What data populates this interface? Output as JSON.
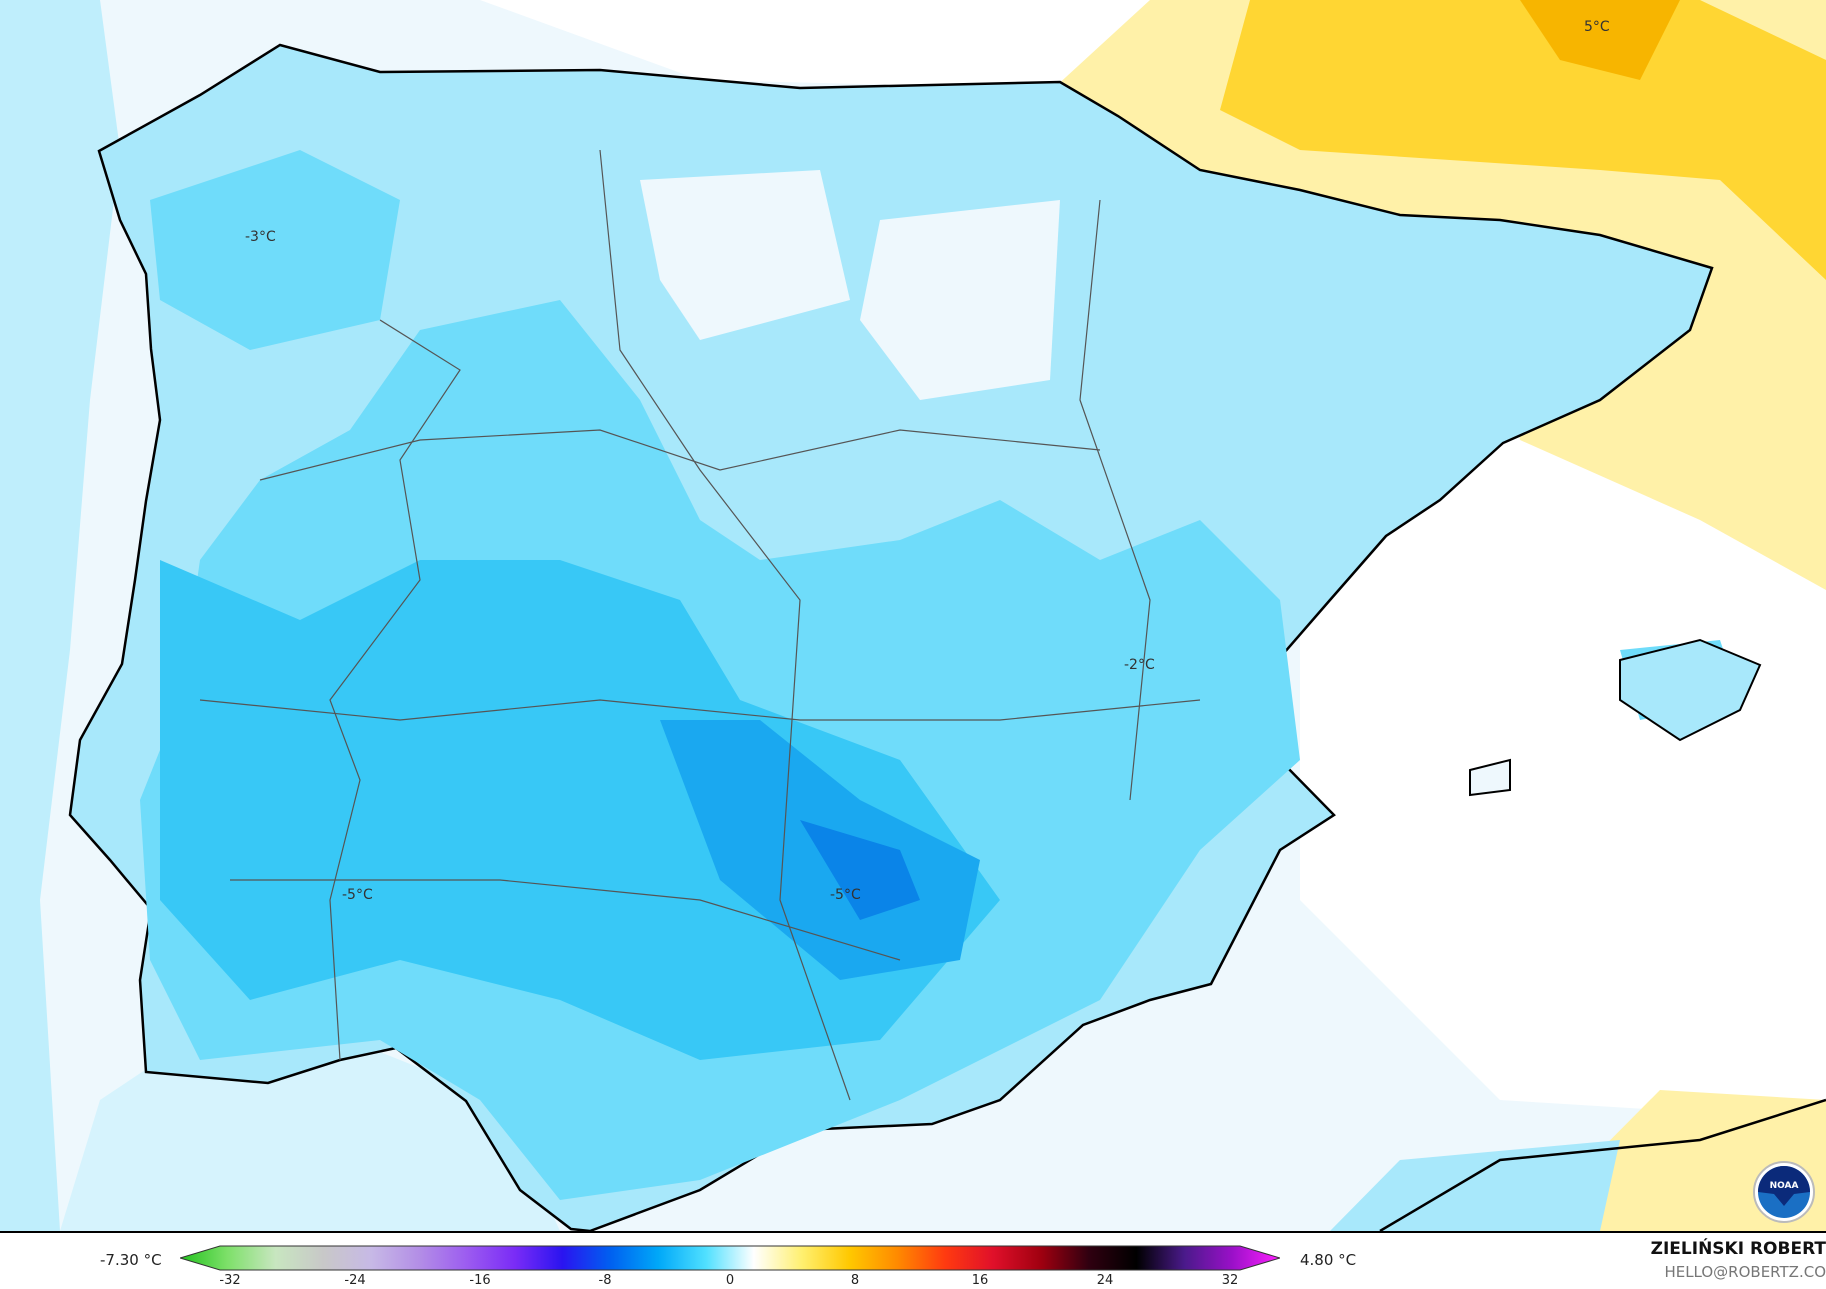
{
  "map": {
    "labels": [
      "-3°C",
      "-2°C",
      "-5°C",
      "-5°C",
      "5°C"
    ],
    "colors": {
      "sea_cold": "#bfeefc",
      "cold1": "#a8e8fb",
      "cold2": "#6fdcfa",
      "cold3": "#38c8f6",
      "cold4": "#1aa8f0",
      "warm1": "#fff1a8",
      "warm2": "#ffd633",
      "warm3": "#f7b500"
    },
    "logo": "NOAA"
  },
  "legend": {
    "min_label": "-7.30 °C",
    "max_label": "4.80 °C",
    "ticks": [
      "-32",
      "-24",
      "-16",
      "-8",
      "0",
      "8",
      "16",
      "24",
      "32"
    ],
    "gradient": [
      "#22c21e",
      "#7ee06a",
      "#c8e6c0",
      "#c8c8c8",
      "#c7b9e6",
      "#b38ee6",
      "#9c5cf0",
      "#7a2cf6",
      "#2a14f0",
      "#0060f0",
      "#00a8f8",
      "#50e0ff",
      "#ffffff",
      "#fff070",
      "#ffc800",
      "#ff8a00",
      "#ff3a10",
      "#e0102a",
      "#a00010",
      "#300010",
      "#000000",
      "#4a1a8a",
      "#9a10c8",
      "#ff20ff"
    ]
  },
  "branding": {
    "name": "ZIELIŃSKI ROBERT",
    "email": "HELLO@ROBERTZ.CO"
  }
}
